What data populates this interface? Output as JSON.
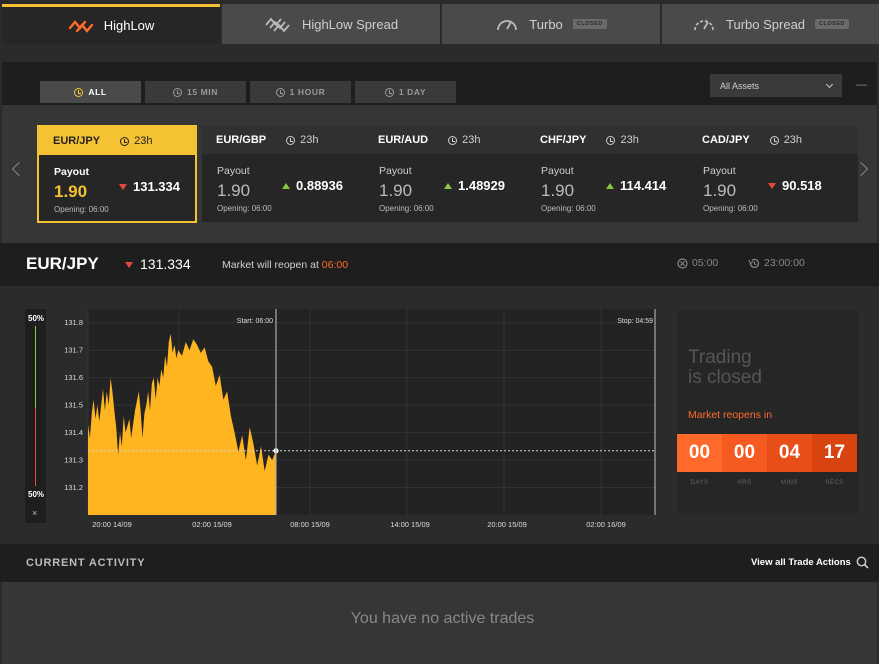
{
  "product_tabs": [
    {
      "label": "HighLow",
      "active": true,
      "closed": false
    },
    {
      "label": "HighLow Spread",
      "active": false,
      "closed": false
    },
    {
      "label": "Turbo",
      "active": false,
      "closed": true
    },
    {
      "label": "Turbo Spread",
      "active": false,
      "closed": true
    }
  ],
  "closed_badge": "CLOSED",
  "filters": [
    {
      "label": "ALL",
      "active": true
    },
    {
      "label": "15 MIN",
      "active": false
    },
    {
      "label": "1 HOUR",
      "active": false
    },
    {
      "label": "1 DAY",
      "active": false
    }
  ],
  "asset_select": {
    "value": "All Assets"
  },
  "minimize_glyph": "—",
  "assets": [
    {
      "pair": "EUR/JPY",
      "time": "23h",
      "payout_label": "Payout",
      "payout": "1.90",
      "rate": "131.334",
      "direction": "down",
      "opening": "Opening: 06:00",
      "selected": true
    },
    {
      "pair": "EUR/GBP",
      "time": "23h",
      "payout_label": "Payout",
      "payout": "1.90",
      "rate": "0.88936",
      "direction": "up",
      "opening": "Opening: 06:00",
      "selected": false
    },
    {
      "pair": "EUR/AUD",
      "time": "23h",
      "payout_label": "Payout",
      "payout": "1.90",
      "rate": "1.48929",
      "direction": "up",
      "opening": "Opening: 06:00",
      "selected": false
    },
    {
      "pair": "CHF/JPY",
      "time": "23h",
      "payout_label": "Payout",
      "payout": "1.90",
      "rate": "114.414",
      "direction": "up",
      "opening": "Opening: 06:00",
      "selected": false
    },
    {
      "pair": "CAD/JPY",
      "time": "23h",
      "payout_label": "Payout",
      "payout": "1.90",
      "rate": "90.518",
      "direction": "down",
      "opening": "Opening: 06:00",
      "selected": false
    }
  ],
  "info": {
    "pair": "EUR/JPY",
    "rate": "131.334",
    "reopen_text": "Market will reopen at",
    "reopen_time": "06:00",
    "expiry": "05:00",
    "remaining": "23:00:00"
  },
  "sentiment": {
    "top": "50%",
    "bottom": "50%",
    "close": "×"
  },
  "chart": {
    "start_label": "Start: 06:00",
    "stop_label": "Stop: 04:59",
    "y_ticks": [
      "131.8",
      "131.7",
      "131.6",
      "131.5",
      "131.4",
      "131.3",
      "131.2"
    ],
    "x_ticks": [
      "20:00 14/09",
      "02:00 15/09",
      "08:00 15/09",
      "14:00 15/09",
      "20:00 15/09",
      "02:00 16/09"
    ]
  },
  "chart_data": {
    "type": "area",
    "ylim": [
      131.1,
      131.85
    ],
    "series": [
      {
        "points": [
          [
            0,
            131.43
          ],
          [
            0.01,
            131.38
          ],
          [
            0.02,
            131.47
          ],
          [
            0.03,
            131.52
          ],
          [
            0.04,
            131.45
          ],
          [
            0.05,
            131.5
          ],
          [
            0.06,
            131.44
          ],
          [
            0.07,
            131.5
          ],
          [
            0.08,
            131.56
          ],
          [
            0.09,
            131.48
          ],
          [
            0.1,
            131.55
          ],
          [
            0.11,
            131.5
          ],
          [
            0.12,
            131.6
          ],
          [
            0.13,
            131.55
          ],
          [
            0.14,
            131.48
          ],
          [
            0.15,
            131.42
          ],
          [
            0.16,
            131.32
          ],
          [
            0.17,
            131.4
          ],
          [
            0.18,
            131.35
          ],
          [
            0.19,
            131.46
          ],
          [
            0.2,
            131.4
          ],
          [
            0.22,
            131.45
          ],
          [
            0.23,
            131.38
          ],
          [
            0.25,
            131.48
          ],
          [
            0.27,
            131.55
          ],
          [
            0.28,
            131.48
          ],
          [
            0.29,
            131.38
          ],
          [
            0.3,
            131.47
          ],
          [
            0.31,
            131.5
          ],
          [
            0.32,
            131.55
          ],
          [
            0.33,
            131.48
          ],
          [
            0.34,
            131.58
          ],
          [
            0.35,
            131.6
          ],
          [
            0.36,
            131.52
          ],
          [
            0.37,
            131.6
          ],
          [
            0.38,
            131.57
          ],
          [
            0.39,
            131.63
          ],
          [
            0.4,
            131.6
          ],
          [
            0.41,
            131.68
          ],
          [
            0.42,
            131.64
          ],
          [
            0.43,
            131.73
          ],
          [
            0.44,
            131.76
          ],
          [
            0.45,
            131.69
          ],
          [
            0.46,
            131.72
          ],
          [
            0.47,
            131.67
          ],
          [
            0.48,
            131.7
          ],
          [
            0.5,
            131.68
          ],
          [
            0.52,
            131.73
          ],
          [
            0.54,
            131.7
          ],
          [
            0.56,
            131.74
          ],
          [
            0.58,
            131.72
          ],
          [
            0.6,
            131.69
          ],
          [
            0.62,
            131.71
          ],
          [
            0.64,
            131.66
          ],
          [
            0.66,
            131.64
          ],
          [
            0.68,
            131.57
          ],
          [
            0.7,
            131.61
          ],
          [
            0.72,
            131.52
          ],
          [
            0.74,
            131.55
          ],
          [
            0.76,
            131.46
          ],
          [
            0.78,
            131.4
          ],
          [
            0.8,
            131.33
          ],
          [
            0.82,
            131.39
          ],
          [
            0.84,
            131.3
          ],
          [
            0.86,
            131.42
          ],
          [
            0.88,
            131.36
          ],
          [
            0.9,
            131.28
          ],
          [
            0.92,
            131.35
          ],
          [
            0.94,
            131.26
          ],
          [
            0.96,
            131.32
          ],
          [
            0.98,
            131.3
          ],
          [
            1,
            131.334
          ]
        ]
      }
    ],
    "current_value": 131.334
  },
  "trading_closed": {
    "line1": "Trading",
    "line2": "is closed",
    "reopens": "Market reopens in",
    "countdown": [
      {
        "value": "00",
        "label": "DAYS"
      },
      {
        "value": "00",
        "label": "HRS"
      },
      {
        "value": "04",
        "label": "MINS"
      },
      {
        "value": "17",
        "label": "SECS"
      }
    ]
  },
  "activity": {
    "title": "CURRENT ACTIVITY",
    "view_all": "View all Trade Actions",
    "empty": "You have no active trades"
  },
  "colors": {
    "accent": "#f4c232",
    "down": "#e24b3b",
    "up": "#8cc63f",
    "reopen": "#ff6a2b"
  }
}
